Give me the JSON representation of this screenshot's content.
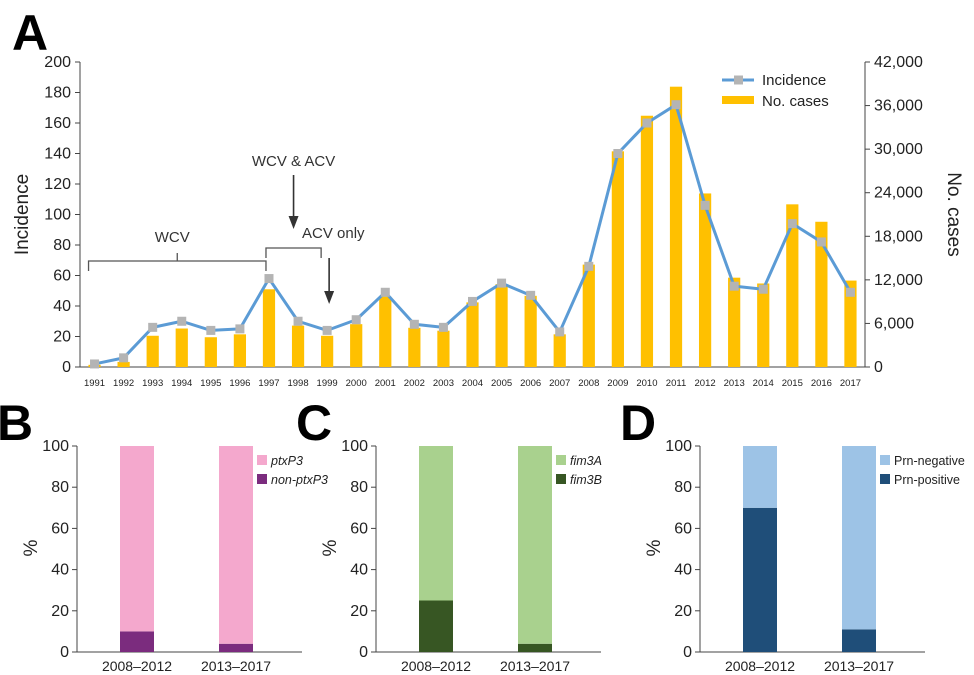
{
  "chart_data": [
    {
      "panel": "A",
      "type": "bar+line",
      "x": [
        "1991",
        "1992",
        "1993",
        "1994",
        "1995",
        "1996",
        "1997",
        "1998",
        "1999",
        "2000",
        "2001",
        "2002",
        "2003",
        "2004",
        "2005",
        "2006",
        "2007",
        "2008",
        "2009",
        "2010",
        "2011",
        "2012",
        "2013",
        "2014",
        "2015",
        "2016",
        "2017"
      ],
      "series": [
        {
          "name": "Incidence",
          "type": "line",
          "axis": "left",
          "color": "#5b9bd5",
          "marker_color": "#b4b4b4",
          "values": [
            2,
            6,
            26,
            30,
            24,
            25,
            58,
            30,
            24,
            31,
            49,
            28,
            26,
            43,
            55,
            47,
            23,
            66,
            140,
            160,
            172,
            106,
            53,
            51,
            94,
            82,
            49
          ]
        },
        {
          "name": "No. cases",
          "type": "bar",
          "axis": "right",
          "color": "#ffc000",
          "values": [
            300,
            700,
            4300,
            5300,
            4100,
            4500,
            10700,
            5700,
            4300,
            5900,
            9700,
            5400,
            5000,
            8900,
            11400,
            9800,
            4500,
            14100,
            29700,
            34600,
            38600,
            23900,
            12300,
            11500,
            22400,
            20000,
            11900
          ]
        }
      ],
      "ylabel": "Incidence",
      "y2label": "No. cases",
      "ylim": [
        0,
        200
      ],
      "y2lim": [
        0,
        42000
      ],
      "yticks": [
        "0",
        "20",
        "40",
        "60",
        "80",
        "100",
        "120",
        "140",
        "160",
        "180",
        "200"
      ],
      "y2ticks": [
        "0",
        "6,000",
        "12,000",
        "18,000",
        "24,000",
        "30,000",
        "36,000",
        "42,000"
      ],
      "annotations": {
        "wcv": "WCV",
        "wcv_acv": "WCV & ACV",
        "acv_only": "ACV only"
      },
      "legend_position": "top-right"
    },
    {
      "panel": "B",
      "type": "stacked-bar",
      "categories": [
        "2008–2012",
        "2013–2017"
      ],
      "series": [
        {
          "name": "non-ptxP3",
          "color": "#7b2c7e",
          "values": [
            10,
            4
          ]
        },
        {
          "name": "ptxP3",
          "color": "#f4a8cd",
          "values": [
            90,
            96
          ]
        }
      ],
      "ylabel": "%",
      "ylim": [
        0,
        100
      ],
      "yticks": [
        "0",
        "20",
        "40",
        "60",
        "80",
        "100"
      ],
      "legend_position": "top-right"
    },
    {
      "panel": "C",
      "type": "stacked-bar",
      "categories": [
        "2008–2012",
        "2013–2017"
      ],
      "series": [
        {
          "name": "fim3B",
          "color": "#375623",
          "values": [
            25,
            4
          ]
        },
        {
          "name": "fim3A",
          "color": "#a9d18e",
          "values": [
            75,
            96
          ]
        }
      ],
      "ylabel": "%",
      "ylim": [
        0,
        100
      ],
      "yticks": [
        "0",
        "20",
        "40",
        "60",
        "80",
        "100"
      ],
      "legend_position": "top-right"
    },
    {
      "panel": "D",
      "type": "stacked-bar",
      "categories": [
        "2008–2012",
        "2013–2017"
      ],
      "series": [
        {
          "name": "Prn-positive",
          "color": "#1f4e79",
          "values": [
            70,
            11
          ]
        },
        {
          "name": "Prn-negative",
          "color": "#9dc3e6",
          "values": [
            30,
            89
          ]
        }
      ],
      "ylabel": "%",
      "ylim": [
        0,
        100
      ],
      "yticks": [
        "0",
        "20",
        "40",
        "60",
        "80",
        "100"
      ],
      "legend_position": "top-right"
    }
  ]
}
